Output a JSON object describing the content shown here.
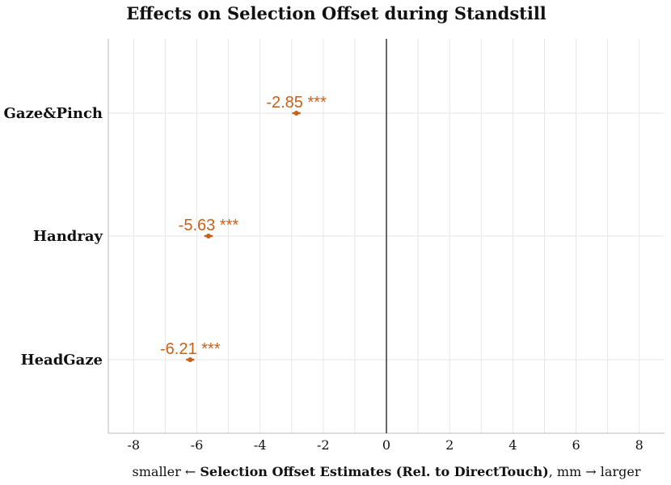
{
  "chart_data": {
    "type": "scatter",
    "title": "Effects on Selection Offset during Standstill",
    "categories": [
      "Gaze&Pinch",
      "Handray",
      "HeadGaze"
    ],
    "estimates": [
      -2.85,
      -5.63,
      -6.21
    ],
    "ci_low": [
      -2.98,
      -5.76,
      -6.34
    ],
    "ci_high": [
      -2.72,
      -5.5,
      -6.08
    ],
    "significance": [
      "***",
      "***",
      "***"
    ],
    "labels": [
      "-2.85 ***",
      "-5.63 ***",
      "-6.21 ***"
    ],
    "xlim": [
      -8.8,
      8.8
    ],
    "xticks": [
      -8,
      -6,
      -4,
      -2,
      0,
      2,
      4,
      6,
      8
    ],
    "xtick_labels": [
      "-8",
      "-6",
      "-4",
      "-2",
      "0",
      "2",
      "4",
      "6",
      "8"
    ],
    "reference_line": 0,
    "xlabel": {
      "prefix": "smaller ← ",
      "bold": "Selection Offset Estimates (Rel. to DirectTouch)",
      "suffix": ", mm → larger"
    },
    "color": "#c8601a",
    "grid": true
  }
}
